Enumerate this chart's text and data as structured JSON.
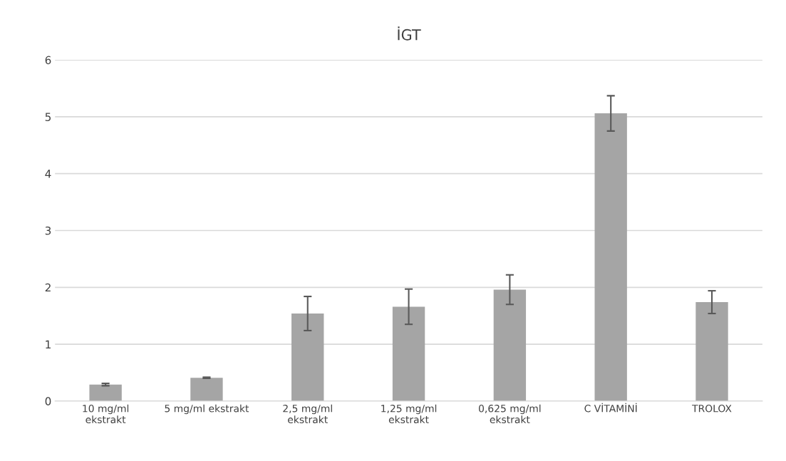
{
  "chart_data": {
    "type": "bar",
    "title": "İGT",
    "categories": [
      "10 mg/ml\nekstrakt",
      "5 mg/ml ekstrakt",
      "2,5 mg/ml\nekstrakt",
      "1,25 mg/ml\nekstrakt",
      "0,625 mg/ml\nekstrakt",
      "C VİTAMİNİ",
      "TROLOX"
    ],
    "values": [
      0.29,
      0.41,
      1.54,
      1.66,
      1.96,
      5.06,
      1.74
    ],
    "errors": [
      0.02,
      0.01,
      0.3,
      0.31,
      0.26,
      0.31,
      0.2
    ],
    "color": "#a5a5a5",
    "ylim": [
      0,
      6
    ],
    "yticks": [
      0,
      1,
      2,
      3,
      4,
      5,
      6
    ],
    "grid": "y",
    "legend": false
  }
}
